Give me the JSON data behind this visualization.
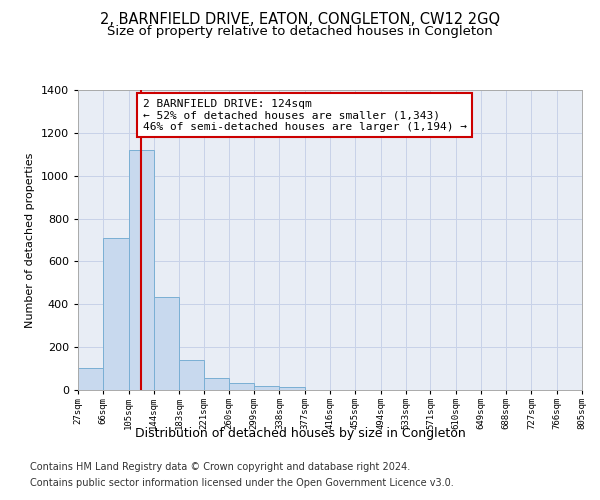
{
  "title": "2, BARNFIELD DRIVE, EATON, CONGLETON, CW12 2GQ",
  "subtitle": "Size of property relative to detached houses in Congleton",
  "xlabel": "Distribution of detached houses by size in Congleton",
  "ylabel": "Number of detached properties",
  "bin_edges": [
    27,
    66,
    105,
    144,
    183,
    221,
    260,
    299,
    338,
    377,
    416,
    455,
    494,
    533,
    571,
    610,
    649,
    688,
    727,
    766,
    805
  ],
  "bar_heights": [
    105,
    710,
    1120,
    435,
    140,
    55,
    32,
    18,
    12,
    0,
    0,
    0,
    0,
    0,
    0,
    0,
    0,
    0,
    0,
    0
  ],
  "bar_color": "#c8d9ee",
  "bar_edge_color": "#7aafd4",
  "property_size": 124,
  "property_line_color": "#cc0000",
  "annotation_text": "2 BARNFIELD DRIVE: 124sqm\n← 52% of detached houses are smaller (1,343)\n46% of semi-detached houses are larger (1,194) →",
  "annotation_box_color": "#ffffff",
  "annotation_box_edge_color": "#cc0000",
  "ylim": [
    0,
    1400
  ],
  "yticks": [
    0,
    200,
    400,
    600,
    800,
    1000,
    1200,
    1400
  ],
  "grid_color": "#c8d2e8",
  "background_color": "#e8edf5",
  "footer_line1": "Contains HM Land Registry data © Crown copyright and database right 2024.",
  "footer_line2": "Contains public sector information licensed under the Open Government Licence v3.0.",
  "title_fontsize": 10.5,
  "subtitle_fontsize": 9.5,
  "annotation_fontsize": 8,
  "ylabel_fontsize": 8,
  "xlabel_fontsize": 9,
  "footer_fontsize": 7
}
